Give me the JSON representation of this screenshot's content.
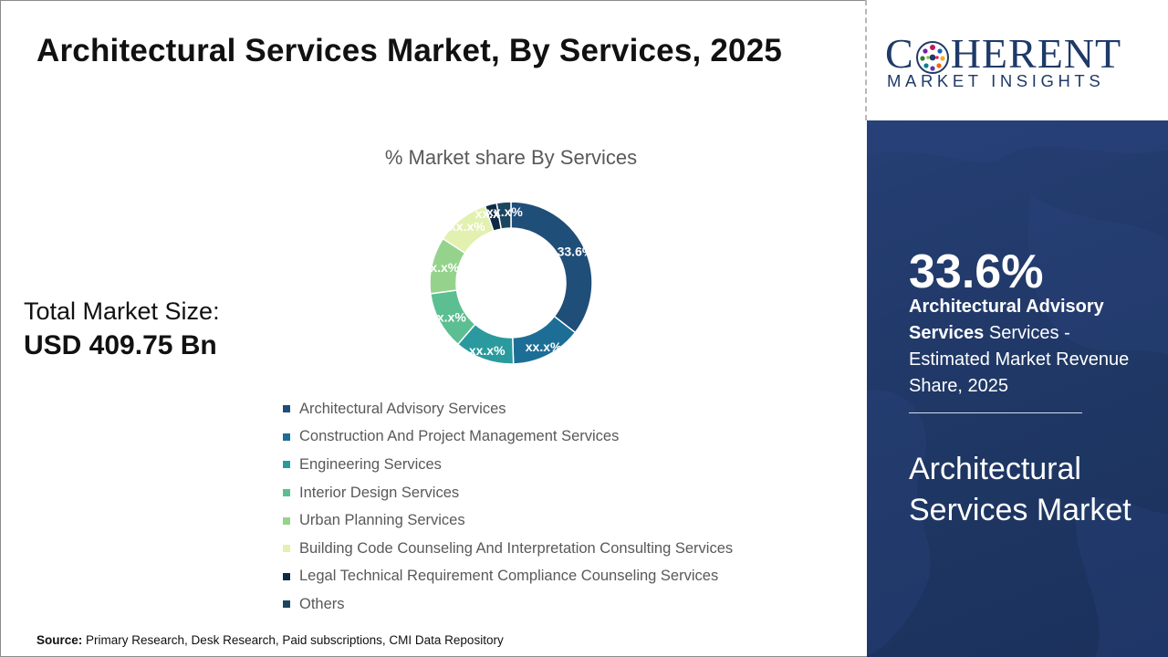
{
  "title": "Architectural Services Market, By Services, 2025",
  "total_market": {
    "label": "Total Market Size:",
    "value": "USD 409.75 Bn"
  },
  "source": {
    "label": "Source:",
    "text": "Primary Research, Desk Research, Paid subscriptions, CMI Data Repository"
  },
  "logo": {
    "name_left": "C",
    "name_right": "HERENT",
    "subtitle": "MARKET INSIGHTS"
  },
  "panel": {
    "stat_value": "33.6%",
    "stat_segment": "Architectural Advisory Services",
    "stat_suffix": " Services - Estimated Market Revenue Share, 2025",
    "market_name": "Architectural Services Market"
  },
  "colors": {
    "accent": "#1f3a68",
    "panel_bg": "#1f3764"
  },
  "chart_data": {
    "type": "pie",
    "title": "% Market share By Services",
    "donut": true,
    "categories": [
      "Architectural Advisory Services",
      "Construction And Project Management Services",
      "Engineering Services",
      "Interior Design Services",
      "Urban Planning Services",
      "Building Code Counseling And Interpretation Consulting Services",
      "Legal Technical Requirement Compliance Counseling Services",
      "Others"
    ],
    "values": [
      33.6,
      13.3,
      11.2,
      10.9,
      10.7,
      10.1,
      2.2,
      2.7
    ],
    "labels": [
      "33.6%",
      "xx.x%",
      "xx.x%",
      "xx.x%",
      "xx.x%",
      "xx.x%",
      "xx.x%",
      "xx.x%"
    ],
    "colors": [
      "#1f4e79",
      "#1d6e96",
      "#2a9a9e",
      "#5bbf91",
      "#95d38c",
      "#e2f0b0",
      "#0f2a44",
      "#1b4660"
    ],
    "legend_position": "bottom"
  }
}
